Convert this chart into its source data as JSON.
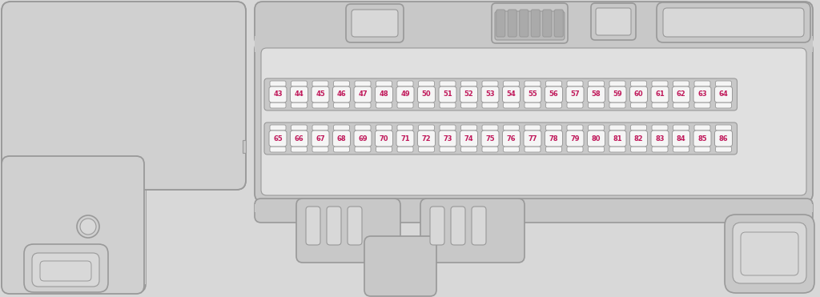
{
  "bg_color": "#d8d8d8",
  "panel_color": "#d0d0d0",
  "fuse_box_color": "#d4d4d4",
  "fuse_strip_color": "#c8c8c8",
  "fuse_body_color": "#f5f5f5",
  "fuse_border": "#999999",
  "fuse_number_color": "#c0185a",
  "dark_gray": "#aaaaaa",
  "mid_gray": "#c8c8c8",
  "light_gray": "#e0e0e0",
  "outline_color": "#999999",
  "white": "#ffffff",
  "row1_fuses": [
    43,
    44,
    45,
    46,
    47,
    48,
    49,
    50,
    51,
    52,
    53,
    54,
    55,
    56,
    57,
    58,
    59,
    60,
    61,
    62,
    63,
    64
  ],
  "row2_fuses": [
    65,
    66,
    67,
    68,
    69,
    70,
    71,
    72,
    73,
    74,
    75,
    76,
    77,
    78,
    79,
    80,
    81,
    82,
    83,
    84,
    85,
    86
  ],
  "figsize": [
    10.24,
    3.71
  ],
  "dpi": 100
}
